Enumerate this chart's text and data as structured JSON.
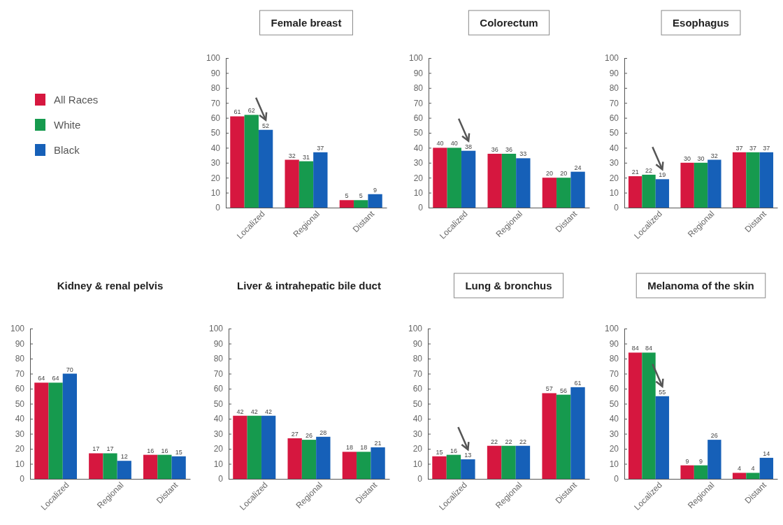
{
  "chart_data": [
    {
      "type": "bar",
      "title": "Female breast",
      "categories": [
        "Localized",
        "Regional",
        "Distant"
      ],
      "ylim": [
        0,
        100
      ],
      "yticks": [
        0,
        10,
        20,
        30,
        40,
        50,
        60,
        70,
        80,
        90,
        100
      ],
      "grid": false,
      "data_labels": true,
      "legend": "left",
      "series": [
        {
          "name": "All Races",
          "color": "#d6173f",
          "values": [
            61,
            32,
            5
          ]
        },
        {
          "name": "White",
          "color": "#169a4e",
          "values": [
            62,
            31,
            5
          ]
        },
        {
          "name": "Black",
          "color": "#1660b8",
          "values": [
            52,
            37,
            9
          ]
        }
      ]
    },
    {
      "type": "bar",
      "title": "Colorectum",
      "categories": [
        "Localized",
        "Regional",
        "Distant"
      ],
      "ylim": [
        0,
        100
      ],
      "yticks": [
        0,
        10,
        20,
        30,
        40,
        50,
        60,
        70,
        80,
        90,
        100
      ],
      "grid": false,
      "data_labels": true,
      "series": [
        {
          "color": "#d6173f",
          "values": [
            40,
            36,
            20
          ]
        },
        {
          "color": "#169a4e",
          "values": [
            40,
            36,
            20
          ]
        },
        {
          "color": "#1660b8",
          "values": [
            38,
            33,
            24
          ]
        }
      ]
    },
    {
      "type": "bar",
      "title": "Esophagus",
      "categories": [
        "Localized",
        "Regional",
        "Distant"
      ],
      "ylim": [
        0,
        100
      ],
      "yticks": [
        0,
        10,
        20,
        30,
        40,
        50,
        60,
        70,
        80,
        90,
        100
      ],
      "grid": false,
      "data_labels": true,
      "series": [
        {
          "color": "#d6173f",
          "values": [
            21,
            30,
            37
          ]
        },
        {
          "color": "#169a4e",
          "values": [
            22,
            30,
            37
          ]
        },
        {
          "color": "#1660b8",
          "values": [
            19,
            32,
            37
          ]
        }
      ]
    },
    {
      "type": "bar",
      "title": "Kidney & renal pelvis",
      "categories": [
        "Localized",
        "Regional",
        "Distant"
      ],
      "ylim": [
        0,
        100
      ],
      "yticks": [
        0,
        10,
        20,
        30,
        40,
        50,
        60,
        70,
        80,
        90,
        100
      ],
      "grid": false,
      "data_labels": true,
      "series": [
        {
          "color": "#d6173f",
          "values": [
            64,
            17,
            16
          ]
        },
        {
          "color": "#169a4e",
          "values": [
            64,
            17,
            16
          ]
        },
        {
          "color": "#1660b8",
          "values": [
            70,
            12,
            15
          ]
        }
      ]
    },
    {
      "type": "bar",
      "title": "Liver & intrahepatic bile duct",
      "categories": [
        "Localized",
        "Regional",
        "Distant"
      ],
      "ylim": [
        0,
        100
      ],
      "yticks": [
        0,
        10,
        20,
        30,
        40,
        50,
        60,
        70,
        80,
        90,
        100
      ],
      "grid": false,
      "data_labels": true,
      "series": [
        {
          "color": "#d6173f",
          "values": [
            42,
            27,
            18
          ]
        },
        {
          "color": "#169a4e",
          "values": [
            42,
            26,
            18
          ]
        },
        {
          "color": "#1660b8",
          "values": [
            42,
            28,
            21
          ]
        }
      ]
    },
    {
      "type": "bar",
      "title": "Lung & bronchus",
      "categories": [
        "Localized",
        "Regional",
        "Distant"
      ],
      "ylim": [
        0,
        100
      ],
      "yticks": [
        0,
        10,
        20,
        30,
        40,
        50,
        60,
        70,
        80,
        90,
        100
      ],
      "grid": false,
      "data_labels": true,
      "series": [
        {
          "color": "#d6173f",
          "values": [
            15,
            22,
            57
          ]
        },
        {
          "color": "#169a4e",
          "values": [
            16,
            22,
            56
          ]
        },
        {
          "color": "#1660b8",
          "values": [
            13,
            22,
            61
          ]
        }
      ]
    },
    {
      "type": "bar",
      "title": "Melanoma of the skin",
      "categories": [
        "Localized",
        "Regional",
        "Distant"
      ],
      "ylim": [
        0,
        100
      ],
      "yticks": [
        0,
        10,
        20,
        30,
        40,
        50,
        60,
        70,
        80,
        90,
        100
      ],
      "grid": false,
      "data_labels": true,
      "series": [
        {
          "color": "#d6173f",
          "values": [
            84,
            9,
            4
          ]
        },
        {
          "color": "#169a4e",
          "values": [
            84,
            9,
            4
          ]
        },
        {
          "color": "#1660b8",
          "values": [
            55,
            26,
            14
          ]
        }
      ]
    }
  ]
}
